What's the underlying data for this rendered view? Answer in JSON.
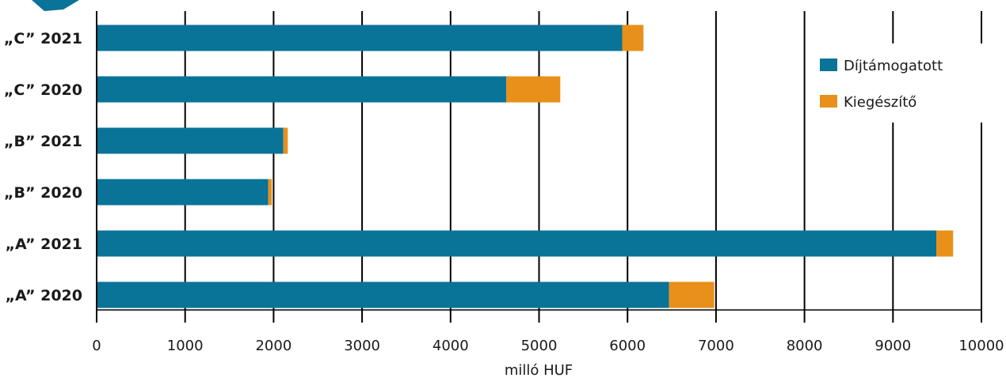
{
  "chart_data": {
    "type": "bar",
    "orientation": "horizontal",
    "stacked": true,
    "categories": [
      "„A” 2020",
      "„A” 2021",
      "„B” 2020",
      "„B” 2021",
      "„C” 2020",
      "„C” 2021"
    ],
    "series": [
      {
        "name": "Díjtámogatott",
        "color": "#0a7398",
        "values": [
          6470,
          9490,
          1940,
          2110,
          4630,
          5940
        ]
      },
      {
        "name": "Kiegészítő",
        "color": "#e8901a",
        "values": [
          510,
          190,
          40,
          50,
          610,
          240
        ]
      }
    ],
    "xlabel": "milló HUF",
    "xlim": [
      0,
      10000
    ],
    "xticks": [
      "0",
      "1000",
      "2000",
      "3000",
      "4000",
      "5000",
      "6000",
      "7000",
      "8000",
      "9000",
      "10000"
    ],
    "grid": "vertical",
    "legend_position": "right"
  }
}
